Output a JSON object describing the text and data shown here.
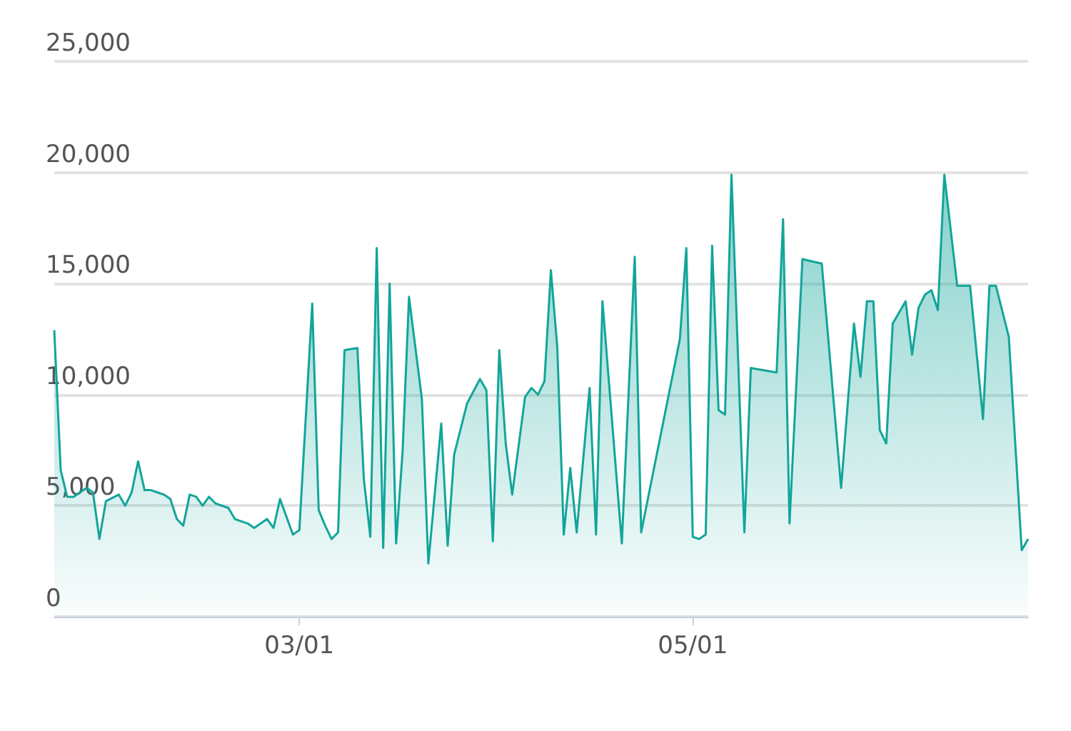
{
  "chart_data": {
    "type": "area",
    "color": "#12a59a",
    "grid": "y",
    "xlim": [
      "--01-22",
      "--06-22"
    ],
    "xticks": [
      {
        "value": "--03-01",
        "label": "03/01"
      },
      {
        "value": "--05-01",
        "label": "05/01"
      }
    ],
    "ylim": [
      0,
      25000
    ],
    "yticks": [
      0,
      {
        "value": 5000,
        "label": "5,000"
      },
      {
        "value": 10000,
        "label": "10,000"
      },
      {
        "value": 15000,
        "label": "15,000"
      },
      {
        "value": 20000,
        "label": "20,000"
      },
      {
        "value": 25000,
        "label": "25,000"
      }
    ],
    "x": [
      "--01-22",
      "--01-23",
      "--01-24",
      "--01-25",
      "--01-27",
      "--01-28",
      "--01-29",
      "--01-30",
      "--02-01",
      "--02-02",
      "--02-03",
      "--02-04",
      "--02-05",
      "--02-06",
      "--02-07",
      "--02-08",
      "--02-09",
      "--02-10",
      "--02-11",
      "--02-12",
      "--02-13",
      "--02-14",
      "--02-15",
      "--02-16",
      "--02-18",
      "--02-19",
      "--02-21",
      "--02-22",
      "--02-24",
      "--02-25",
      "--02-26",
      "--02-28",
      "--03-01",
      "--03-03",
      "--03-04",
      "--03-05",
      "--03-06",
      "--03-07",
      "--03-08",
      "--03-10",
      "--03-11",
      "--03-12",
      "--03-13",
      "--03-14",
      "--03-15",
      "--03-16",
      "--03-17",
      "--03-18",
      "--03-20",
      "--03-21",
      "--03-23",
      "--03-24",
      "--03-25",
      "--03-27",
      "--03-29",
      "--03-30",
      "--03-31",
      "--04-01",
      "--04-02",
      "--04-03",
      "--04-05",
      "--04-06",
      "--04-07",
      "--04-08",
      "--04-09",
      "--04-10",
      "--04-11",
      "--04-12",
      "--04-13",
      "--04-15",
      "--04-16",
      "--04-17",
      "--04-20",
      "--04-22",
      "--04-23",
      "--04-29",
      "--04-30",
      "--05-01",
      "--05-02",
      "--05-03",
      "--05-04",
      "--05-05",
      "--05-06",
      "--05-07",
      "--05-09",
      "--05-10",
      "--05-14",
      "--05-15",
      "--05-16",
      "--05-18",
      "--05-21",
      "--05-24",
      "--05-26",
      "--05-27",
      "--05-28",
      "--05-29",
      "--05-30",
      "--05-31",
      "--06-01",
      "--06-03",
      "--06-04",
      "--06-05",
      "--06-06",
      "--06-07",
      "--06-08",
      "--06-09",
      "--06-11",
      "--06-13",
      "--06-15",
      "--06-16",
      "--06-17",
      "--06-19",
      "--06-21",
      "--06-22"
    ],
    "values": [
      12900,
      6600,
      5400,
      5400,
      5800,
      5600,
      3500,
      5200,
      5500,
      5000,
      5600,
      7000,
      5700,
      5700,
      5600,
      5500,
      5300,
      4400,
      4100,
      5500,
      5400,
      5000,
      5400,
      5100,
      4900,
      4400,
      4200,
      4000,
      4400,
      4000,
      5300,
      3700,
      3900,
      14100,
      4800,
      4100,
      3500,
      3800,
      12000,
      12100,
      6200,
      3600,
      16600,
      3100,
      15000,
      3300,
      7400,
      14400,
      9800,
      2400,
      8700,
      3200,
      7300,
      9600,
      10700,
      10200,
      3400,
      12000,
      7800,
      5500,
      9900,
      10300,
      10000,
      10600,
      15600,
      12100,
      3700,
      6700,
      3800,
      10300,
      3700,
      14200,
      3300,
      16200,
      3800,
      12500,
      16600,
      3600,
      3500,
      3700,
      16700,
      9300,
      9100,
      19900,
      3800,
      11200,
      11000,
      17900,
      4200,
      16100,
      15900,
      5800,
      13200,
      10800,
      14200,
      14200,
      8400,
      7800,
      13200,
      14200,
      11800,
      13900,
      14500,
      14700,
      13800,
      19900,
      14900,
      14900,
      8900,
      14900,
      14900,
      12600,
      3000,
      3500
    ]
  }
}
